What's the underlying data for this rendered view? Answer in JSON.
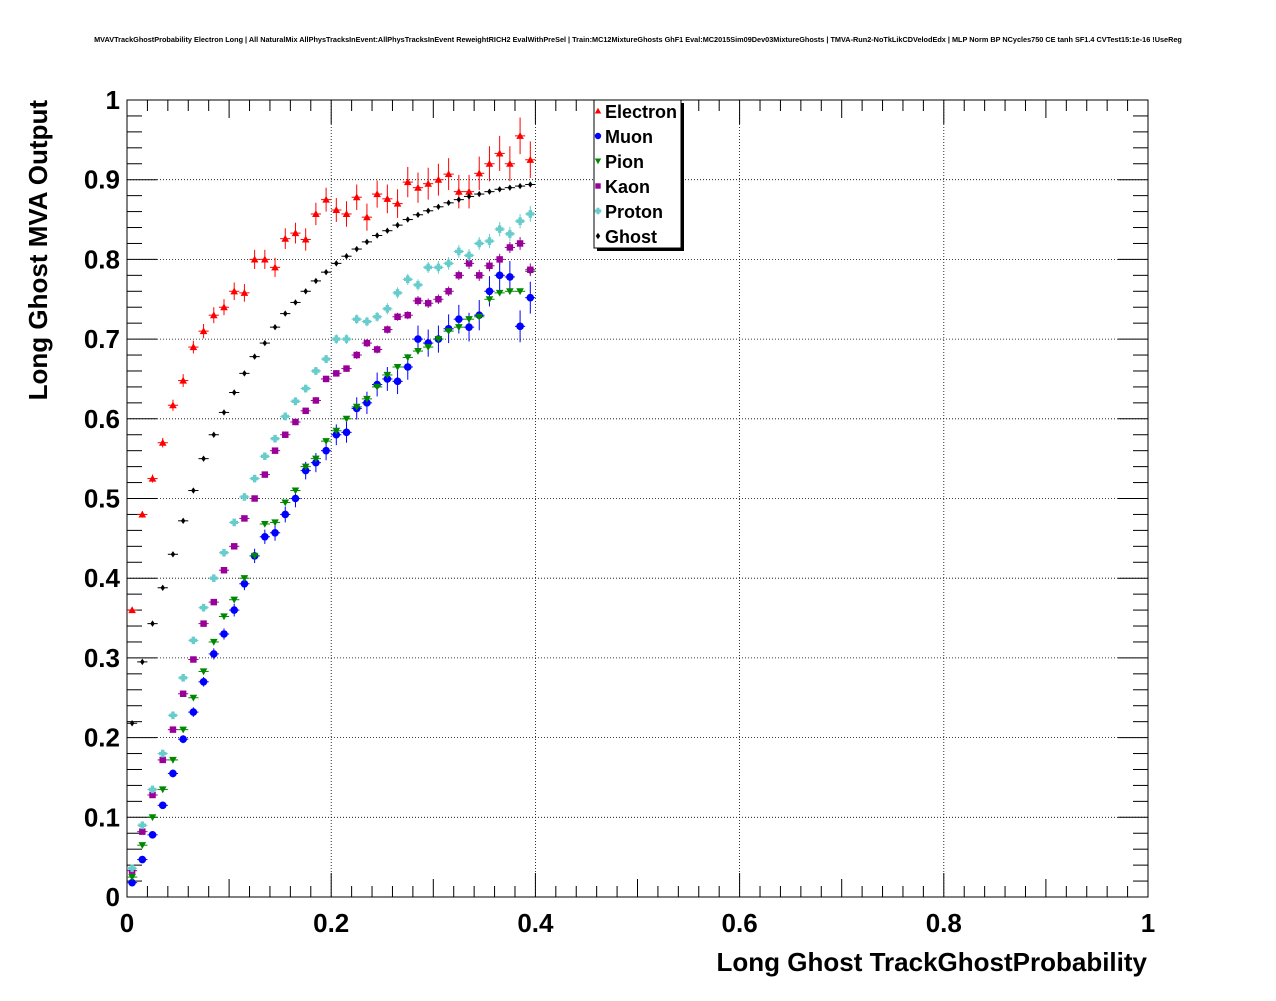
{
  "chart_data": {
    "type": "scatter",
    "title": "MVAVTrackGhostProbability Electron Long | All NaturalMix AllPhysTracksInEvent:AllPhysTracksInEvent ReweightRICH2 EvalWithPreSel | Train:MC12MixtureGhosts GhF1 Eval:MC2015Sim09Dev03MixtureGhosts | TMVA-Run2-NoTkLikCDVelodEdx | MLP Norm BP NCycles750 CE tanh SF1.4 CVTest15:1e-16 !UseReg",
    "xlabel": "Long Ghost TrackGhostProbability",
    "ylabel": "Long Ghost MVA Output",
    "xlim": [
      0,
      1
    ],
    "ylim": [
      0,
      1
    ],
    "x_ticks": [
      "0",
      "0.2",
      "0.4",
      "0.6",
      "0.8",
      "1"
    ],
    "y_ticks": [
      "0",
      "0.1",
      "0.2",
      "0.3",
      "0.4",
      "0.5",
      "0.6",
      "0.7",
      "0.8",
      "0.9",
      "1"
    ],
    "grid": true,
    "legend_position": "top-center",
    "x": [
      0.005,
      0.015,
      0.025,
      0.035,
      0.045,
      0.055,
      0.065,
      0.075,
      0.085,
      0.095,
      0.105,
      0.115,
      0.125,
      0.135,
      0.145,
      0.155,
      0.165,
      0.175,
      0.185,
      0.195,
      0.205,
      0.215,
      0.225,
      0.235,
      0.245,
      0.255,
      0.265,
      0.275,
      0.285,
      0.295,
      0.305,
      0.315,
      0.325,
      0.335,
      0.345,
      0.355,
      0.365,
      0.375,
      0.385,
      0.395
    ],
    "series": [
      {
        "name": "Electron",
        "color": "#ff0000",
        "marker": "triangle-up",
        "values": [
          0.36,
          0.48,
          0.525,
          0.57,
          0.617,
          0.648,
          0.69,
          0.71,
          0.73,
          0.74,
          0.76,
          0.758,
          0.8,
          0.8,
          0.79,
          0.826,
          0.833,
          0.825,
          0.857,
          0.875,
          0.862,
          0.857,
          0.878,
          0.853,
          0.882,
          0.876,
          0.87,
          0.897,
          0.89,
          0.895,
          0.9,
          0.907,
          0.885,
          0.885,
          0.908,
          0.92,
          0.933,
          0.92,
          0.955,
          0.925
        ],
        "errors": [
          0.003,
          0.004,
          0.005,
          0.006,
          0.007,
          0.008,
          0.008,
          0.009,
          0.01,
          0.01,
          0.011,
          0.011,
          0.012,
          0.012,
          0.012,
          0.013,
          0.013,
          0.014,
          0.014,
          0.015,
          0.015,
          0.016,
          0.016,
          0.017,
          0.017,
          0.018,
          0.018,
          0.019,
          0.019,
          0.02,
          0.02,
          0.02,
          0.021,
          0.021,
          0.021,
          0.022,
          0.022,
          0.022,
          0.023,
          0.023
        ]
      },
      {
        "name": "Muon",
        "color": "#0000ff",
        "marker": "circle",
        "values": [
          0.018,
          0.047,
          0.078,
          0.115,
          0.155,
          0.198,
          0.232,
          0.27,
          0.305,
          0.33,
          0.36,
          0.393,
          0.428,
          0.452,
          0.457,
          0.48,
          0.5,
          0.535,
          0.545,
          0.56,
          0.58,
          0.583,
          0.613,
          0.62,
          0.643,
          0.65,
          0.647,
          0.665,
          0.7,
          0.695,
          0.7,
          0.713,
          0.725,
          0.715,
          0.73,
          0.76,
          0.78,
          0.778,
          0.716,
          0.752
        ],
        "errors": [
          0.003,
          0.003,
          0.004,
          0.004,
          0.005,
          0.005,
          0.006,
          0.006,
          0.007,
          0.007,
          0.008,
          0.008,
          0.009,
          0.009,
          0.01,
          0.01,
          0.011,
          0.011,
          0.012,
          0.012,
          0.013,
          0.013,
          0.014,
          0.014,
          0.015,
          0.015,
          0.016,
          0.016,
          0.017,
          0.017,
          0.017,
          0.018,
          0.018,
          0.018,
          0.019,
          0.019,
          0.019,
          0.02,
          0.02,
          0.02
        ]
      },
      {
        "name": "Pion",
        "color": "#008800",
        "marker": "triangle-down",
        "values": [
          0.025,
          0.065,
          0.1,
          0.135,
          0.172,
          0.21,
          0.25,
          0.283,
          0.32,
          0.352,
          0.373,
          0.4,
          0.428,
          0.468,
          0.47,
          0.495,
          0.51,
          0.54,
          0.55,
          0.572,
          0.585,
          0.6,
          0.615,
          0.625,
          0.64,
          0.655,
          0.665,
          0.677,
          0.685,
          0.69,
          0.7,
          0.71,
          0.715,
          0.725,
          0.728,
          0.75,
          0.758,
          0.76,
          0.76,
          0.785
        ],
        "errors": [
          0.001,
          0.001,
          0.001,
          0.001,
          0.001,
          0.001,
          0.001,
          0.001,
          0.001,
          0.001,
          0.001,
          0.001,
          0.001,
          0.001,
          0.001,
          0.001,
          0.001,
          0.001,
          0.001,
          0.001,
          0.001,
          0.001,
          0.001,
          0.001,
          0.001,
          0.001,
          0.001,
          0.001,
          0.001,
          0.001,
          0.001,
          0.001,
          0.001,
          0.001,
          0.001,
          0.001,
          0.001,
          0.001,
          0.001,
          0.001
        ]
      },
      {
        "name": "Kaon",
        "color": "#990099",
        "marker": "square",
        "values": [
          0.033,
          0.082,
          0.128,
          0.172,
          0.21,
          0.255,
          0.298,
          0.343,
          0.37,
          0.41,
          0.44,
          0.475,
          0.5,
          0.53,
          0.56,
          0.58,
          0.596,
          0.61,
          0.623,
          0.65,
          0.657,
          0.663,
          0.68,
          0.695,
          0.687,
          0.712,
          0.728,
          0.73,
          0.748,
          0.745,
          0.75,
          0.76,
          0.78,
          0.795,
          0.78,
          0.792,
          0.8,
          0.815,
          0.82,
          0.787
        ],
        "errors": [
          0.001,
          0.001,
          0.001,
          0.002,
          0.002,
          0.002,
          0.002,
          0.002,
          0.002,
          0.002,
          0.003,
          0.003,
          0.003,
          0.003,
          0.003,
          0.003,
          0.004,
          0.004,
          0.004,
          0.004,
          0.004,
          0.004,
          0.005,
          0.005,
          0.005,
          0.005,
          0.005,
          0.005,
          0.006,
          0.006,
          0.006,
          0.006,
          0.006,
          0.007,
          0.007,
          0.007,
          0.007,
          0.007,
          0.008,
          0.008
        ]
      },
      {
        "name": "Proton",
        "color": "#66cccc",
        "marker": "cross",
        "values": [
          0.036,
          0.09,
          0.135,
          0.18,
          0.228,
          0.275,
          0.322,
          0.363,
          0.4,
          0.432,
          0.47,
          0.502,
          0.525,
          0.553,
          0.575,
          0.603,
          0.622,
          0.638,
          0.66,
          0.675,
          0.7,
          0.7,
          0.725,
          0.722,
          0.728,
          0.738,
          0.758,
          0.775,
          0.768,
          0.79,
          0.79,
          0.795,
          0.81,
          0.805,
          0.82,
          0.823,
          0.838,
          0.832,
          0.848,
          0.857
        ],
        "errors": [
          0.001,
          0.001,
          0.002,
          0.002,
          0.002,
          0.002,
          0.003,
          0.003,
          0.003,
          0.003,
          0.004,
          0.004,
          0.004,
          0.004,
          0.004,
          0.005,
          0.005,
          0.005,
          0.005,
          0.005,
          0.006,
          0.006,
          0.006,
          0.006,
          0.006,
          0.007,
          0.007,
          0.007,
          0.007,
          0.007,
          0.008,
          0.008,
          0.008,
          0.008,
          0.008,
          0.009,
          0.009,
          0.009,
          0.009,
          0.01
        ]
      },
      {
        "name": "Ghost",
        "color": "#000000",
        "marker": "diamond",
        "values": [
          0.218,
          0.295,
          0.343,
          0.388,
          0.43,
          0.472,
          0.51,
          0.55,
          0.58,
          0.608,
          0.633,
          0.657,
          0.678,
          0.695,
          0.715,
          0.732,
          0.746,
          0.76,
          0.773,
          0.784,
          0.795,
          0.804,
          0.813,
          0.822,
          0.83,
          0.836,
          0.843,
          0.85,
          0.856,
          0.861,
          0.866,
          0.871,
          0.875,
          0.879,
          0.882,
          0.885,
          0.888,
          0.89,
          0.892,
          0.894
        ],
        "errors": [
          0.0005,
          0.0005,
          0.0005,
          0.0005,
          0.0005,
          0.0005,
          0.0005,
          0.0005,
          0.0005,
          0.0005,
          0.0005,
          0.0005,
          0.0005,
          0.0005,
          0.0005,
          0.0005,
          0.0005,
          0.0005,
          0.0005,
          0.0005,
          0.0005,
          0.0005,
          0.0005,
          0.0005,
          0.0005,
          0.0005,
          0.0005,
          0.0005,
          0.0005,
          0.0005,
          0.0005,
          0.0005,
          0.0005,
          0.0005,
          0.0005,
          0.0005,
          0.0005,
          0.0005,
          0.0005,
          0.0005
        ]
      }
    ]
  }
}
